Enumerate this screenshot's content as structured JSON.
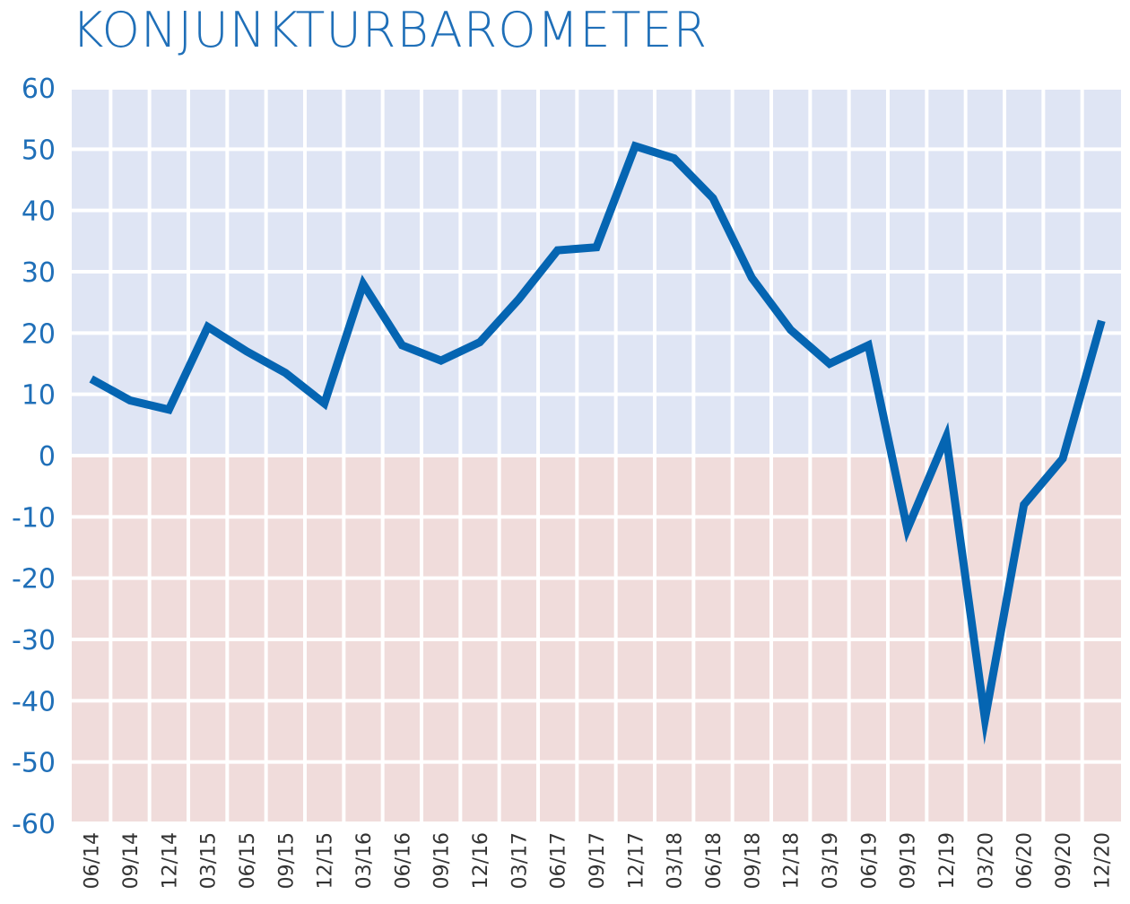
{
  "chart_data": {
    "type": "line",
    "title": "KONJUNKTURBAROMETER",
    "categories": [
      "06/14",
      "09/14",
      "12/14",
      "03/15",
      "06/15",
      "09/15",
      "12/15",
      "03/16",
      "06/16",
      "09/16",
      "12/16",
      "03/17",
      "06/17",
      "09/17",
      "12/17",
      "03/18",
      "06/18",
      "09/18",
      "12/18",
      "03/19",
      "06/19",
      "09/19",
      "12/19",
      "03/20",
      "06/20",
      "09/20",
      "12/20"
    ],
    "series": [
      {
        "values": [
          12.5,
          9,
          7.5,
          21,
          17,
          13.5,
          8.5,
          28,
          18,
          15.5,
          18.5,
          25.5,
          33.5,
          34,
          50.5,
          48.5,
          42,
          29,
          20.5,
          15,
          18,
          -12,
          3,
          -43,
          -8,
          -0.5,
          22
        ]
      }
    ],
    "y_ticks": [
      "60",
      "50",
      "40",
      "30",
      "20",
      "10",
      "0",
      "-10",
      "-20",
      "-30",
      "-40",
      "-50",
      "-60"
    ],
    "ylim": [
      -60,
      60
    ],
    "xlabel": "",
    "ylabel": "",
    "grid": true,
    "colors": {
      "line": "#0565b2",
      "positive_band": "#dfe5f4",
      "negative_band": "#f0dcdb",
      "grid": "#ffffff",
      "title": "#1f6fb8",
      "y_tick": "#1f6fb8",
      "x_tick": "#333333"
    }
  }
}
